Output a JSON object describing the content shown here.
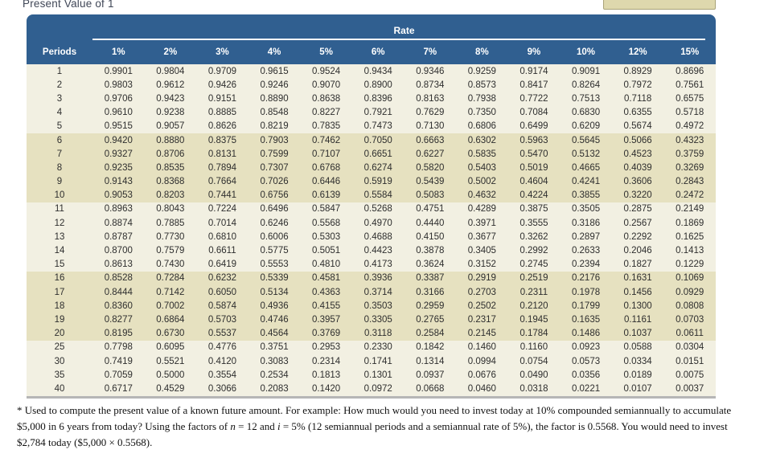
{
  "page_title": "Present Value of 1",
  "colors": {
    "header_blue": "#305f90",
    "band_light": "#f2f0e2",
    "band_dark": "#e6e1c0",
    "toolbar_tan": "#ded8ad",
    "bottom_border_gray": "#b6b6b6"
  },
  "table": {
    "rate_group_label": "Rate",
    "periods_label": "Periods",
    "rate_headers": [
      "1%",
      "2%",
      "3%",
      "4%",
      "5%",
      "6%",
      "7%",
      "8%",
      "9%",
      "10%",
      "12%",
      "15%"
    ],
    "rows": [
      {
        "period": "1",
        "values": [
          "0.9901",
          "0.9804",
          "0.9709",
          "0.9615",
          "0.9524",
          "0.9434",
          "0.9346",
          "0.9259",
          "0.9174",
          "0.9091",
          "0.8929",
          "0.8696"
        ]
      },
      {
        "period": "2",
        "values": [
          "0.9803",
          "0.9612",
          "0.9426",
          "0.9246",
          "0.9070",
          "0.8900",
          "0.8734",
          "0.8573",
          "0.8417",
          "0.8264",
          "0.7972",
          "0.7561"
        ]
      },
      {
        "period": "3",
        "values": [
          "0.9706",
          "0.9423",
          "0.9151",
          "0.8890",
          "0.8638",
          "0.8396",
          "0.8163",
          "0.7938",
          "0.7722",
          "0.7513",
          "0.7118",
          "0.6575"
        ]
      },
      {
        "period": "4",
        "values": [
          "0.9610",
          "0.9238",
          "0.8885",
          "0.8548",
          "0.8227",
          "0.7921",
          "0.7629",
          "0.7350",
          "0.7084",
          "0.6830",
          "0.6355",
          "0.5718"
        ]
      },
      {
        "period": "5",
        "values": [
          "0.9515",
          "0.9057",
          "0.8626",
          "0.8219",
          "0.7835",
          "0.7473",
          "0.7130",
          "0.6806",
          "0.6499",
          "0.6209",
          "0.5674",
          "0.4972"
        ]
      },
      {
        "period": "6",
        "values": [
          "0.9420",
          "0.8880",
          "0.8375",
          "0.7903",
          "0.7462",
          "0.7050",
          "0.6663",
          "0.6302",
          "0.5963",
          "0.5645",
          "0.5066",
          "0.4323"
        ]
      },
      {
        "period": "7",
        "values": [
          "0.9327",
          "0.8706",
          "0.8131",
          "0.7599",
          "0.7107",
          "0.6651",
          "0.6227",
          "0.5835",
          "0.5470",
          "0.5132",
          "0.4523",
          "0.3759"
        ]
      },
      {
        "period": "8",
        "values": [
          "0.9235",
          "0.8535",
          "0.7894",
          "0.7307",
          "0.6768",
          "0.6274",
          "0.5820",
          "0.5403",
          "0.5019",
          "0.4665",
          "0.4039",
          "0.3269"
        ]
      },
      {
        "period": "9",
        "values": [
          "0.9143",
          "0.8368",
          "0.7664",
          "0.7026",
          "0.6446",
          "0.5919",
          "0.5439",
          "0.5002",
          "0.4604",
          "0.4241",
          "0.3606",
          "0.2843"
        ]
      },
      {
        "period": "10",
        "values": [
          "0.9053",
          "0.8203",
          "0.7441",
          "0.6756",
          "0.6139",
          "0.5584",
          "0.5083",
          "0.4632",
          "0.4224",
          "0.3855",
          "0.3220",
          "0.2472"
        ]
      },
      {
        "period": "11",
        "values": [
          "0.8963",
          "0.8043",
          "0.7224",
          "0.6496",
          "0.5847",
          "0.5268",
          "0.4751",
          "0.4289",
          "0.3875",
          "0.3505",
          "0.2875",
          "0.2149"
        ]
      },
      {
        "period": "12",
        "values": [
          "0.8874",
          "0.7885",
          "0.7014",
          "0.6246",
          "0.5568",
          "0.4970",
          "0.4440",
          "0.3971",
          "0.3555",
          "0.3186",
          "0.2567",
          "0.1869"
        ]
      },
      {
        "period": "13",
        "values": [
          "0.8787",
          "0.7730",
          "0.6810",
          "0.6006",
          "0.5303",
          "0.4688",
          "0.4150",
          "0.3677",
          "0.3262",
          "0.2897",
          "0.2292",
          "0.1625"
        ]
      },
      {
        "period": "14",
        "values": [
          "0.8700",
          "0.7579",
          "0.6611",
          "0.5775",
          "0.5051",
          "0.4423",
          "0.3878",
          "0.3405",
          "0.2992",
          "0.2633",
          "0.2046",
          "0.1413"
        ]
      },
      {
        "period": "15",
        "values": [
          "0.8613",
          "0.7430",
          "0.6419",
          "0.5553",
          "0.4810",
          "0.4173",
          "0.3624",
          "0.3152",
          "0.2745",
          "0.2394",
          "0.1827",
          "0.1229"
        ]
      },
      {
        "period": "16",
        "values": [
          "0.8528",
          "0.7284",
          "0.6232",
          "0.5339",
          "0.4581",
          "0.3936",
          "0.3387",
          "0.2919",
          "0.2519",
          "0.2176",
          "0.1631",
          "0.1069"
        ]
      },
      {
        "period": "17",
        "values": [
          "0.8444",
          "0.7142",
          "0.6050",
          "0.5134",
          "0.4363",
          "0.3714",
          "0.3166",
          "0.2703",
          "0.2311",
          "0.1978",
          "0.1456",
          "0.0929"
        ]
      },
      {
        "period": "18",
        "values": [
          "0.8360",
          "0.7002",
          "0.5874",
          "0.4936",
          "0.4155",
          "0.3503",
          "0.2959",
          "0.2502",
          "0.2120",
          "0.1799",
          "0.1300",
          "0.0808"
        ]
      },
      {
        "period": "19",
        "values": [
          "0.8277",
          "0.6864",
          "0.5703",
          "0.4746",
          "0.3957",
          "0.3305",
          "0.2765",
          "0.2317",
          "0.1945",
          "0.1635",
          "0.1161",
          "0.0703"
        ]
      },
      {
        "period": "20",
        "values": [
          "0.8195",
          "0.6730",
          "0.5537",
          "0.4564",
          "0.3769",
          "0.3118",
          "0.2584",
          "0.2145",
          "0.1784",
          "0.1486",
          "0.1037",
          "0.0611"
        ]
      },
      {
        "period": "25",
        "values": [
          "0.7798",
          "0.6095",
          "0.4776",
          "0.3751",
          "0.2953",
          "0.2330",
          "0.1842",
          "0.1460",
          "0.1160",
          "0.0923",
          "0.0588",
          "0.0304"
        ]
      },
      {
        "period": "30",
        "values": [
          "0.7419",
          "0.5521",
          "0.4120",
          "0.3083",
          "0.2314",
          "0.1741",
          "0.1314",
          "0.0994",
          "0.0754",
          "0.0573",
          "0.0334",
          "0.0151"
        ]
      },
      {
        "period": "35",
        "values": [
          "0.7059",
          "0.5000",
          "0.3554",
          "0.2534",
          "0.1813",
          "0.1301",
          "0.0937",
          "0.0676",
          "0.0490",
          "0.0356",
          "0.0189",
          "0.0075"
        ]
      },
      {
        "period": "40",
        "values": [
          "0.6717",
          "0.4529",
          "0.3066",
          "0.2083",
          "0.1420",
          "0.0972",
          "0.0668",
          "0.0460",
          "0.0318",
          "0.0221",
          "0.0107",
          "0.0037"
        ]
      }
    ]
  },
  "footnote": {
    "segments": [
      {
        "text": "* Used to compute the present value of a known future amount. For example: How much would you need to invest today at 10% compounded semiannually to accumulate $5,000 in 6 years from today? Using the factors of "
      },
      {
        "text": "n",
        "italic": true
      },
      {
        "text": " = 12 and "
      },
      {
        "text": "i",
        "italic": true
      },
      {
        "text": " = 5% (12 semiannual periods and a semiannual rate of 5%), the factor is 0.5568. You would need to invest $2,784 today ($5,000 × 0.5568)."
      }
    ]
  }
}
